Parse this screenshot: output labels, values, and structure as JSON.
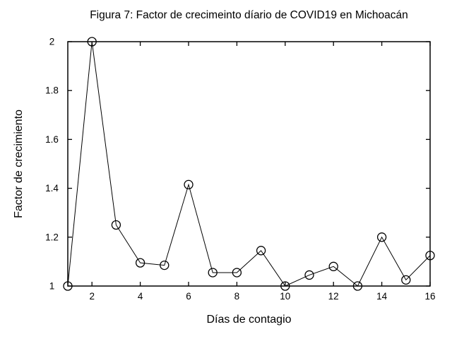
{
  "figure": {
    "title": "Figura 7: Factor de crecimeinto díario de COVID19 en Michoacán",
    "xlabel": "Días de contagio",
    "ylabel": "Factor de crecimiento"
  },
  "chart_data": {
    "type": "line",
    "title": "Figura 7: Factor de crecimeinto díario de COVID19 en Michoacán",
    "xlabel": "Días de contagio",
    "ylabel": "Factor de crecimiento",
    "x": [
      1,
      2,
      3,
      4,
      5,
      6,
      7,
      8,
      9,
      10,
      11,
      12,
      13,
      14,
      15,
      16
    ],
    "y": [
      1.0,
      2.0,
      1.25,
      1.095,
      1.085,
      1.415,
      1.055,
      1.055,
      1.145,
      1.0,
      1.045,
      1.08,
      1.0,
      1.2,
      1.025,
      1.125
    ],
    "xlim": [
      1,
      16
    ],
    "ylim": [
      1,
      2
    ],
    "xticks": [
      2,
      4,
      6,
      8,
      10,
      12,
      14,
      16
    ],
    "xtick_labels": [
      "2",
      "4",
      "6",
      "8",
      "10",
      "12",
      "14",
      "16"
    ],
    "yticks": [
      1,
      1.2,
      1.4,
      1.6,
      1.8,
      2
    ],
    "ytick_labels": [
      "1",
      "1.2",
      "1.4",
      "1.6",
      "1.8",
      "2"
    ],
    "grid": false,
    "legend_position": "none",
    "marker": "open-circle",
    "line_color": "#000000",
    "marker_edge_color": "#000000",
    "axis_color": "#000000",
    "background_color": "#ffffff"
  }
}
